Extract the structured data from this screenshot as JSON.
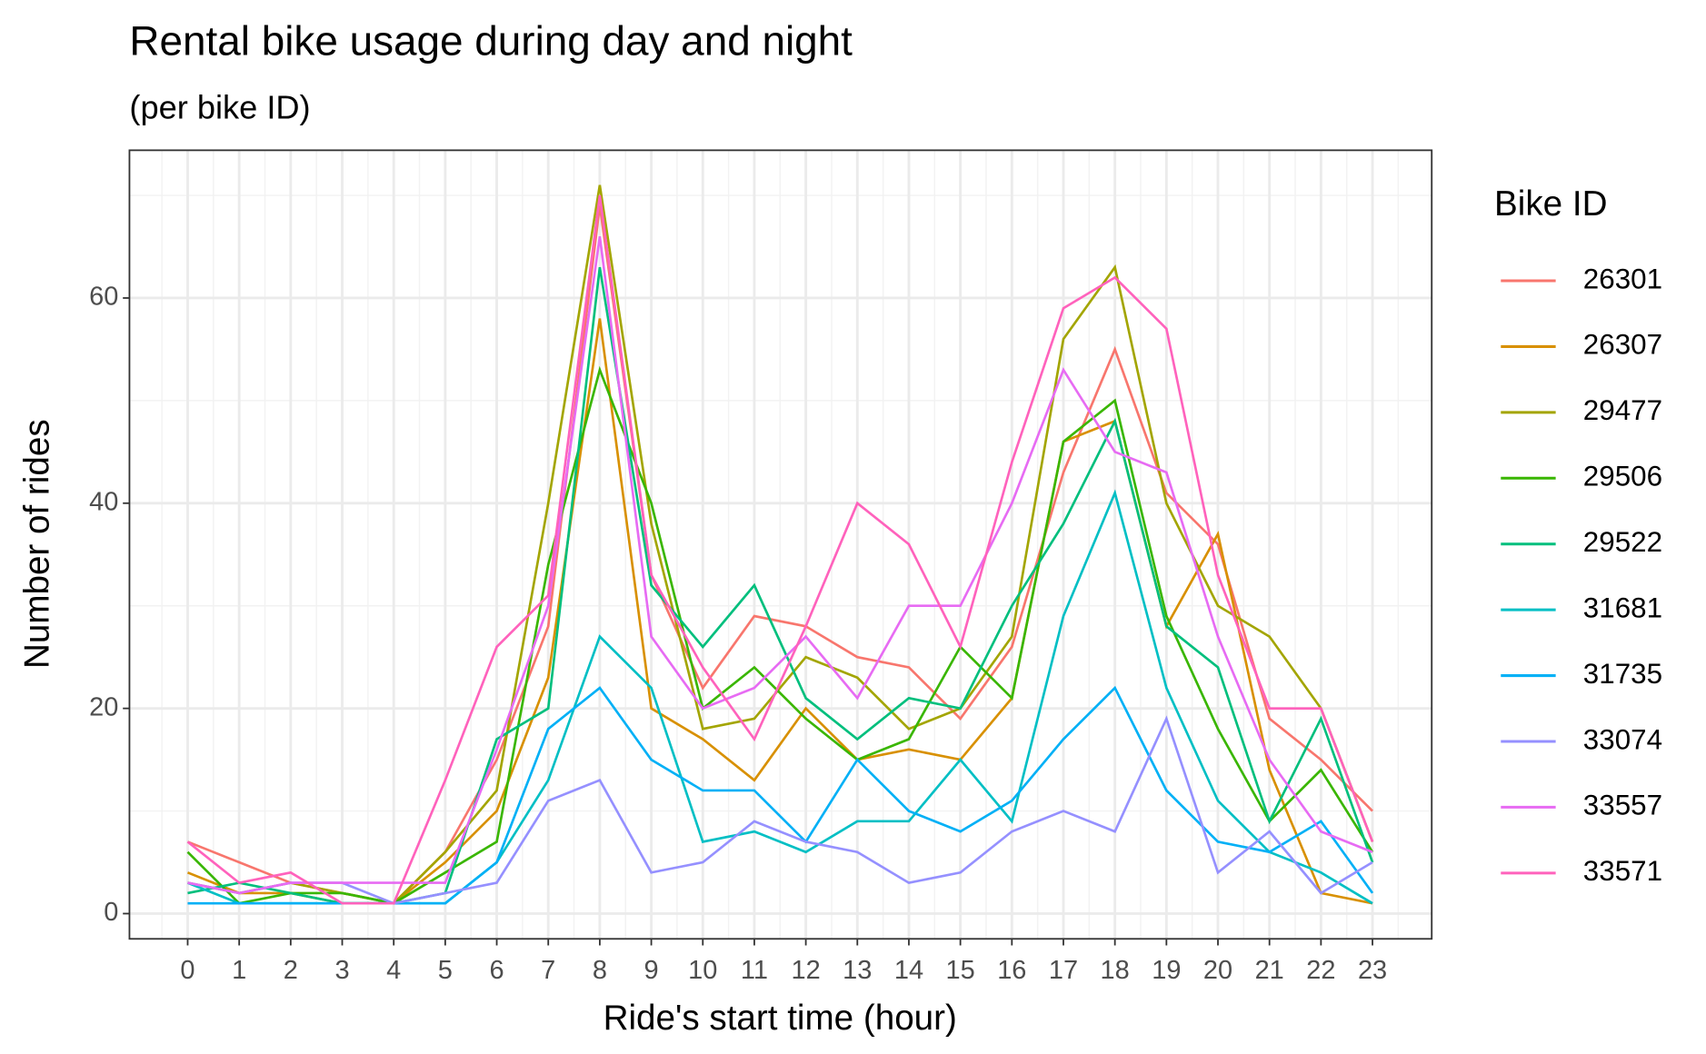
{
  "chart_data": {
    "type": "line",
    "title": "Rental bike usage during day and night",
    "subtitle": "(per bike ID)",
    "x_label": "Ride's start time (hour)",
    "y_label": "Number of rides",
    "legend_title": "Bike ID",
    "legend_position": "right",
    "grid": true,
    "x": [
      0,
      1,
      2,
      3,
      4,
      5,
      6,
      7,
      8,
      9,
      10,
      11,
      12,
      13,
      14,
      15,
      16,
      17,
      18,
      19,
      20,
      21,
      22,
      23
    ],
    "xlim": [
      -1.13,
      24.15
    ],
    "xticks": [
      0,
      1,
      2,
      3,
      4,
      5,
      6,
      7,
      8,
      9,
      10,
      11,
      12,
      13,
      14,
      15,
      16,
      17,
      18,
      19,
      20,
      21,
      22,
      23
    ],
    "xminorticks": [
      -0.5,
      0.5,
      1.5,
      2.5,
      3.5,
      4.5,
      5.5,
      6.5,
      7.5,
      8.5,
      9.5,
      10.5,
      11.5,
      12.5,
      13.5,
      14.5,
      15.5,
      16.5,
      17.5,
      18.5,
      19.5,
      20.5,
      21.5,
      22.5,
      23.5
    ],
    "ylim": [
      -2.46,
      74.4
    ],
    "yticks": [
      0,
      20,
      40,
      60
    ],
    "yminorticks": [
      10,
      30,
      50,
      70
    ],
    "series": [
      {
        "name": "26301",
        "color": "#F8766D",
        "values": [
          7,
          5,
          3,
          2,
          1,
          6,
          15,
          28,
          69,
          33,
          22,
          29,
          28,
          25,
          24,
          19,
          26,
          43,
          55,
          41,
          36,
          19,
          15,
          10
        ]
      },
      {
        "name": "26307",
        "color": "#D89000",
        "values": [
          4,
          2,
          2,
          1,
          1,
          5,
          10,
          23,
          58,
          20,
          17,
          13,
          20,
          15,
          16,
          15,
          21,
          46,
          48,
          28,
          37,
          14,
          2,
          1
        ]
      },
      {
        "name": "29477",
        "color": "#A3A500",
        "values": [
          3,
          2,
          3,
          2,
          1,
          6,
          12,
          40,
          71,
          38,
          18,
          19,
          25,
          23,
          18,
          20,
          27,
          56,
          63,
          40,
          30,
          27,
          20,
          7
        ]
      },
      {
        "name": "29506",
        "color": "#39B600",
        "values": [
          6,
          1,
          2,
          2,
          1,
          4,
          7,
          34,
          53,
          40,
          20,
          24,
          19,
          15,
          17,
          26,
          21,
          46,
          50,
          29,
          18,
          9,
          14,
          6
        ]
      },
      {
        "name": "29522",
        "color": "#00BF7D",
        "values": [
          2,
          3,
          2,
          1,
          1,
          2,
          17,
          20,
          63,
          32,
          26,
          32,
          21,
          17,
          21,
          20,
          30,
          38,
          48,
          28,
          24,
          9,
          19,
          5
        ]
      },
      {
        "name": "31681",
        "color": "#00BFC4",
        "values": [
          3,
          1,
          1,
          1,
          1,
          1,
          5,
          13,
          27,
          22,
          7,
          8,
          6,
          9,
          9,
          15,
          9,
          29,
          41,
          22,
          11,
          6,
          4,
          1
        ]
      },
      {
        "name": "31735",
        "color": "#00B0F6",
        "values": [
          1,
          1,
          1,
          1,
          1,
          1,
          5,
          18,
          22,
          15,
          12,
          12,
          7,
          15,
          10,
          8,
          11,
          17,
          22,
          12,
          7,
          6,
          9,
          2
        ]
      },
      {
        "name": "33074",
        "color": "#9590FF",
        "values": [
          3,
          2,
          3,
          3,
          1,
          2,
          3,
          11,
          13,
          4,
          5,
          9,
          7,
          6,
          3,
          4,
          8,
          10,
          8,
          19,
          4,
          8,
          2,
          5
        ]
      },
      {
        "name": "33557",
        "color": "#E76BF3",
        "values": [
          3,
          2,
          3,
          3,
          3,
          3,
          16,
          30,
          66,
          27,
          20,
          22,
          27,
          21,
          30,
          30,
          40,
          53,
          45,
          43,
          27,
          15,
          8,
          6
        ]
      },
      {
        "name": "33571",
        "color": "#FF62BC",
        "values": [
          7,
          3,
          4,
          1,
          1,
          13,
          26,
          31,
          70,
          33,
          24,
          17,
          28,
          40,
          36,
          26,
          44,
          59,
          62,
          57,
          33,
          20,
          20,
          7
        ]
      }
    ]
  }
}
